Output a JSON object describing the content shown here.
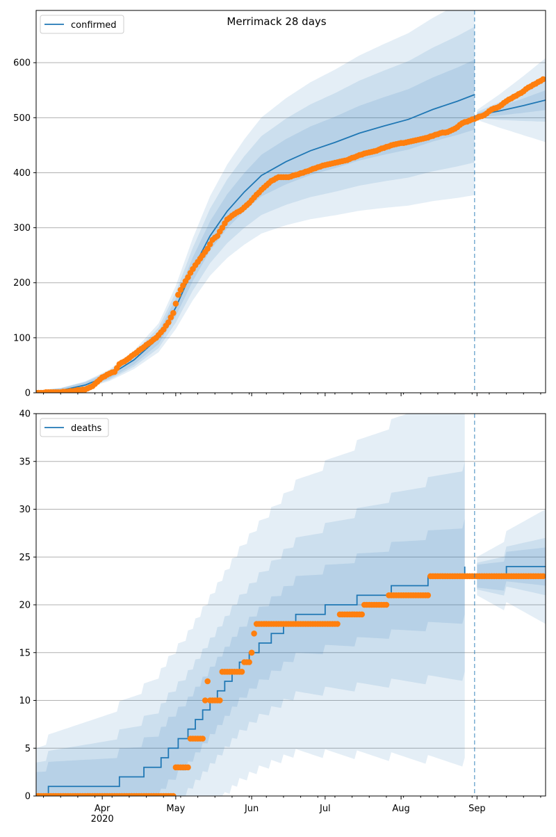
{
  "colors": {
    "model": "#1f77b4",
    "observed": "#ff7f0e",
    "band": "#1f77b4",
    "grid": "#b0b0b0",
    "split": "#1f77b4"
  },
  "title": "Merrimack 28 days",
  "x_axis": {
    "start": "2020-03-05",
    "end": "2020-09-29",
    "month_ticks": [
      {
        "date": "2020-04-01",
        "label": "Apr"
      },
      {
        "date": "2020-05-01",
        "label": "May"
      },
      {
        "date": "2020-06-01",
        "label": "Jun"
      },
      {
        "date": "2020-07-01",
        "label": "Jul"
      },
      {
        "date": "2020-08-01",
        "label": "Aug"
      },
      {
        "date": "2020-09-01",
        "label": "Sep"
      }
    ],
    "year_label": "2020",
    "forecast_start": "2020-08-31"
  },
  "chart_data": [
    {
      "type": "line",
      "legend": "confirmed",
      "legend_position": "upper-left",
      "title": "Merrimack 28 days",
      "ylim": [
        0,
        695
      ],
      "y_ticks": [
        0,
        100,
        200,
        300,
        400,
        500,
        600
      ],
      "grid": "horizontal",
      "model": [
        {
          "date": "2020-03-05",
          "y": 0
        },
        {
          "date": "2020-03-15",
          "y": 4
        },
        {
          "date": "2020-03-25",
          "y": 14
        },
        {
          "date": "2020-04-04",
          "y": 32
        },
        {
          "date": "2020-04-14",
          "y": 60
        },
        {
          "date": "2020-04-24",
          "y": 100
        },
        {
          "date": "2020-05-01",
          "y": 155
        },
        {
          "date": "2020-05-08",
          "y": 225
        },
        {
          "date": "2020-05-15",
          "y": 285
        },
        {
          "date": "2020-05-22",
          "y": 330
        },
        {
          "date": "2020-05-29",
          "y": 365
        },
        {
          "date": "2020-06-05",
          "y": 395
        },
        {
          "date": "2020-06-15",
          "y": 420
        },
        {
          "date": "2020-06-25",
          "y": 440
        },
        {
          "date": "2020-07-05",
          "y": 455
        },
        {
          "date": "2020-07-15",
          "y": 472
        },
        {
          "date": "2020-07-25",
          "y": 485
        },
        {
          "date": "2020-08-04",
          "y": 497
        },
        {
          "date": "2020-08-14",
          "y": 515
        },
        {
          "date": "2020-08-24",
          "y": 530
        },
        {
          "date": "2020-08-31",
          "y": 542
        },
        {
          "date": "2020-09-01",
          "y": 505
        },
        {
          "date": "2020-09-10",
          "y": 512
        },
        {
          "date": "2020-09-20",
          "y": 522
        },
        {
          "date": "2020-09-29",
          "y": 532
        }
      ],
      "band_widths": [
        0.1,
        0.2,
        0.3
      ],
      "forecast_band_widths": [
        0.03,
        0.07,
        0.14
      ],
      "observed": [
        {
          "date": "2020-03-05",
          "y": 0
        },
        {
          "date": "2020-03-13",
          "y": 1
        },
        {
          "date": "2020-03-18",
          "y": 2
        },
        {
          "date": "2020-03-21",
          "y": 4
        },
        {
          "date": "2020-03-25",
          "y": 6
        },
        {
          "date": "2020-03-28",
          "y": 12
        },
        {
          "date": "2020-03-30",
          "y": 20
        },
        {
          "date": "2020-04-01",
          "y": 28
        },
        {
          "date": "2020-04-04",
          "y": 35
        },
        {
          "date": "2020-04-06",
          "y": 38
        },
        {
          "date": "2020-04-08",
          "y": 52
        },
        {
          "date": "2020-04-11",
          "y": 60
        },
        {
          "date": "2020-04-14",
          "y": 70
        },
        {
          "date": "2020-04-17",
          "y": 80
        },
        {
          "date": "2020-04-20",
          "y": 90
        },
        {
          "date": "2020-04-23",
          "y": 100
        },
        {
          "date": "2020-04-26",
          "y": 115
        },
        {
          "date": "2020-04-28",
          "y": 128
        },
        {
          "date": "2020-04-30",
          "y": 145
        },
        {
          "date": "2020-05-02",
          "y": 178
        },
        {
          "date": "2020-05-04",
          "y": 195
        },
        {
          "date": "2020-05-06",
          "y": 210
        },
        {
          "date": "2020-05-08",
          "y": 225
        },
        {
          "date": "2020-05-10",
          "y": 238
        },
        {
          "date": "2020-05-12",
          "y": 250
        },
        {
          "date": "2020-05-14",
          "y": 262
        },
        {
          "date": "2020-05-16",
          "y": 278
        },
        {
          "date": "2020-05-18",
          "y": 285
        },
        {
          "date": "2020-05-20",
          "y": 300
        },
        {
          "date": "2020-05-22",
          "y": 315
        },
        {
          "date": "2020-05-25",
          "y": 325
        },
        {
          "date": "2020-05-28",
          "y": 333
        },
        {
          "date": "2020-05-31",
          "y": 345
        },
        {
          "date": "2020-06-03",
          "y": 360
        },
        {
          "date": "2020-06-06",
          "y": 373
        },
        {
          "date": "2020-06-09",
          "y": 385
        },
        {
          "date": "2020-06-12",
          "y": 392
        },
        {
          "date": "2020-06-16",
          "y": 392
        },
        {
          "date": "2020-06-20",
          "y": 397
        },
        {
          "date": "2020-06-24",
          "y": 403
        },
        {
          "date": "2020-06-28",
          "y": 410
        },
        {
          "date": "2020-07-02",
          "y": 415
        },
        {
          "date": "2020-07-06",
          "y": 419
        },
        {
          "date": "2020-07-10",
          "y": 423
        },
        {
          "date": "2020-07-14",
          "y": 430
        },
        {
          "date": "2020-07-18",
          "y": 436
        },
        {
          "date": "2020-07-22",
          "y": 440
        },
        {
          "date": "2020-07-26",
          "y": 447
        },
        {
          "date": "2020-07-30",
          "y": 452
        },
        {
          "date": "2020-08-03",
          "y": 455
        },
        {
          "date": "2020-08-07",
          "y": 459
        },
        {
          "date": "2020-08-11",
          "y": 463
        },
        {
          "date": "2020-08-14",
          "y": 467
        },
        {
          "date": "2020-08-17",
          "y": 472
        },
        {
          "date": "2020-08-20",
          "y": 474
        },
        {
          "date": "2020-08-23",
          "y": 480
        },
        {
          "date": "2020-08-26",
          "y": 490
        },
        {
          "date": "2020-08-29",
          "y": 495
        },
        {
          "date": "2020-09-01",
          "y": 500
        },
        {
          "date": "2020-09-04",
          "y": 505
        },
        {
          "date": "2020-09-07",
          "y": 515
        },
        {
          "date": "2020-09-10",
          "y": 520
        },
        {
          "date": "2020-09-13",
          "y": 530
        },
        {
          "date": "2020-09-16",
          "y": 538
        },
        {
          "date": "2020-09-19",
          "y": 545
        },
        {
          "date": "2020-09-22",
          "y": 555
        },
        {
          "date": "2020-09-25",
          "y": 562
        },
        {
          "date": "2020-09-28",
          "y": 570
        }
      ]
    },
    {
      "type": "line",
      "legend": "deaths",
      "legend_position": "upper-left",
      "ylim": [
        0,
        40
      ],
      "y_ticks": [
        0,
        5,
        10,
        15,
        20,
        25,
        30,
        35,
        40
      ],
      "grid": "horizontal",
      "model": [
        {
          "date": "2020-03-05",
          "y": 0
        },
        {
          "date": "2020-03-10",
          "y": 1
        },
        {
          "date": "2020-04-08",
          "y": 2
        },
        {
          "date": "2020-04-18",
          "y": 3
        },
        {
          "date": "2020-04-25",
          "y": 4
        },
        {
          "date": "2020-04-28",
          "y": 5
        },
        {
          "date": "2020-05-02",
          "y": 6
        },
        {
          "date": "2020-05-06",
          "y": 7
        },
        {
          "date": "2020-05-09",
          "y": 8
        },
        {
          "date": "2020-05-12",
          "y": 9
        },
        {
          "date": "2020-05-15",
          "y": 10
        },
        {
          "date": "2020-05-18",
          "y": 11
        },
        {
          "date": "2020-05-21",
          "y": 12
        },
        {
          "date": "2020-05-24",
          "y": 13
        },
        {
          "date": "2020-05-27",
          "y": 14
        },
        {
          "date": "2020-05-31",
          "y": 15
        },
        {
          "date": "2020-06-04",
          "y": 16
        },
        {
          "date": "2020-06-09",
          "y": 17
        },
        {
          "date": "2020-06-14",
          "y": 18
        },
        {
          "date": "2020-06-19",
          "y": 19
        },
        {
          "date": "2020-07-01",
          "y": 20
        },
        {
          "date": "2020-07-14",
          "y": 21
        },
        {
          "date": "2020-07-28",
          "y": 22
        },
        {
          "date": "2020-08-12",
          "y": 23
        },
        {
          "date": "2020-08-27",
          "y": 24
        },
        {
          "date": "2020-09-01",
          "y": 23
        },
        {
          "date": "2020-09-13",
          "y": 24
        },
        {
          "date": "2020-09-29",
          "y": 24
        }
      ],
      "band_offsets": [
        1,
        3,
        6
      ],
      "forecast_band_offsets": [
        1,
        2,
        5
      ],
      "observed": [
        {
          "date": "2020-03-05",
          "y": 0
        },
        {
          "date": "2020-04-30",
          "y": 0
        },
        {
          "date": "2020-05-01",
          "y": 3
        },
        {
          "date": "2020-05-06",
          "y": 3
        },
        {
          "date": "2020-05-07",
          "y": 6
        },
        {
          "date": "2020-05-12",
          "y": 6
        },
        {
          "date": "2020-05-13",
          "y": 10
        },
        {
          "date": "2020-05-14",
          "y": 12
        },
        {
          "date": "2020-05-15",
          "y": 10
        },
        {
          "date": "2020-05-19",
          "y": 10
        },
        {
          "date": "2020-05-20",
          "y": 13
        },
        {
          "date": "2020-05-28",
          "y": 13
        },
        {
          "date": "2020-05-29",
          "y": 14
        },
        {
          "date": "2020-05-31",
          "y": 14
        },
        {
          "date": "2020-06-01",
          "y": 15
        },
        {
          "date": "2020-06-02",
          "y": 17
        },
        {
          "date": "2020-06-03",
          "y": 18
        },
        {
          "date": "2020-07-06",
          "y": 18
        },
        {
          "date": "2020-07-07",
          "y": 19
        },
        {
          "date": "2020-07-16",
          "y": 19
        },
        {
          "date": "2020-07-17",
          "y": 20
        },
        {
          "date": "2020-07-26",
          "y": 20
        },
        {
          "date": "2020-07-27",
          "y": 21
        },
        {
          "date": "2020-08-12",
          "y": 21
        },
        {
          "date": "2020-08-13",
          "y": 23
        },
        {
          "date": "2020-09-28",
          "y": 23
        }
      ]
    }
  ]
}
